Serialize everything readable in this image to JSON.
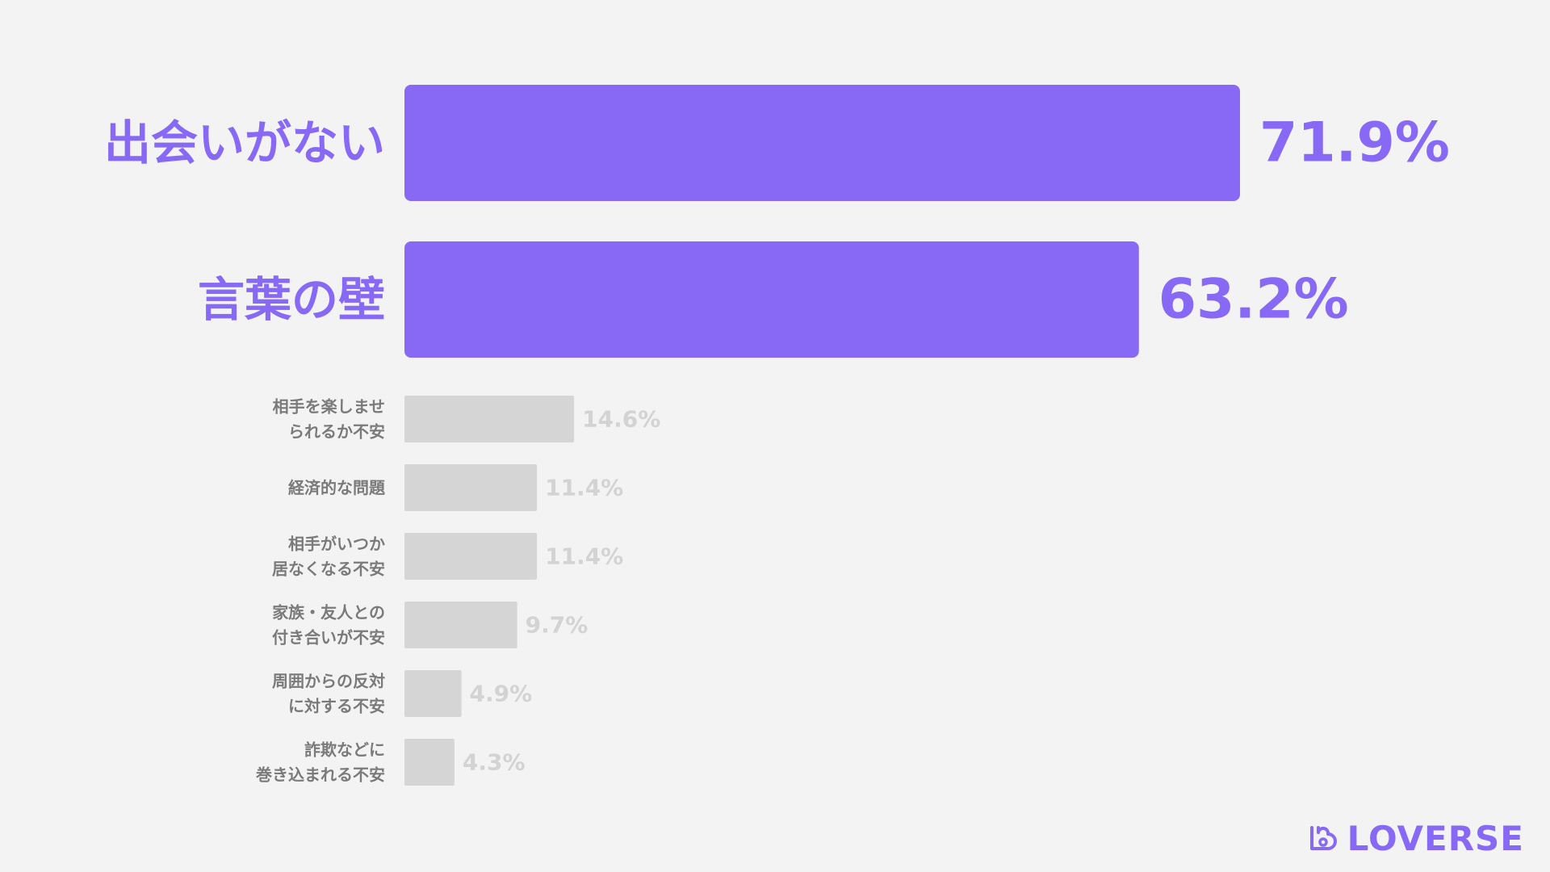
{
  "chart_data": {
    "type": "bar",
    "orientation": "horizontal",
    "categories": [
      [
        "出会いがない"
      ],
      [
        "言葉の壁"
      ],
      [
        "相手を楽しませ",
        "られるか不安"
      ],
      [
        "経済的な問題"
      ],
      [
        "相手がいつか",
        "居なくなる不安"
      ],
      [
        "家族・友人との",
        "付き合いが不安"
      ],
      [
        "周囲からの反対",
        "に対する不安"
      ],
      [
        "詐欺などに",
        "巻き込まれる不安"
      ]
    ],
    "values": [
      71.9,
      63.2,
      14.6,
      11.4,
      11.4,
      9.7,
      4.9,
      4.3
    ],
    "value_labels": [
      "71.9%",
      "63.2%",
      "14.6%",
      "11.4%",
      "11.4%",
      "9.7%",
      "4.9%",
      "4.3%"
    ],
    "highlighted": [
      true,
      true,
      false,
      false,
      false,
      false,
      false,
      false
    ],
    "title": "",
    "xlabel": "",
    "ylabel": "",
    "xlim": [
      0,
      71.9
    ],
    "grid": false,
    "legend": false
  },
  "colors": {
    "background": "#f3f3f3",
    "highlight_bar": "#8769f5",
    "highlight_text": "#8769f5",
    "muted_bar": "#d5d5d5",
    "muted_value_text": "#d3d3d3",
    "muted_label_text": "#7a7a7a"
  },
  "brand": {
    "name": "LOVERSE",
    "icon": "loverse-logo-icon"
  }
}
